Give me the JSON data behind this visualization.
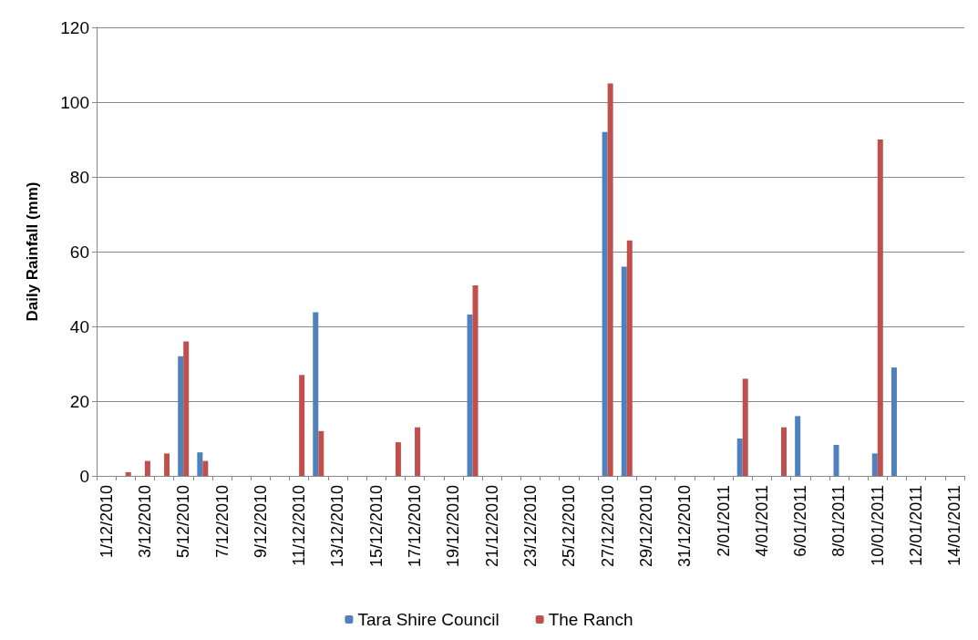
{
  "chart_data": {
    "type": "bar",
    "ylabel": "Daily Rainfall (mm)",
    "categories": [
      "1/12/2010",
      null,
      "3/12/2010",
      null,
      "5/12/2010",
      null,
      "7/12/2010",
      null,
      "9/12/2010",
      null,
      "11/12/2010",
      null,
      "13/12/2010",
      null,
      "15/12/2010",
      null,
      "17/12/2010",
      null,
      "19/12/2010",
      null,
      "21/12/2010",
      null,
      "23/12/2010",
      null,
      "25/12/2010",
      null,
      "27/12/2010",
      null,
      "29/12/2010",
      null,
      "31/12/2010",
      null,
      "2/01/2011",
      null,
      "4/01/2011",
      null,
      "6/01/2011",
      null,
      "8/01/2011",
      null,
      "10/01/2011",
      null,
      "12/01/2011",
      null,
      "14/01/2011"
    ],
    "series": [
      {
        "name": "Tara Shire Council",
        "color": "#4f81bd",
        "values": [
          0,
          0,
          0,
          0,
          32,
          6.3,
          0,
          0,
          0,
          0,
          0,
          43.8,
          0,
          0,
          0,
          0,
          0,
          0,
          0,
          43.2,
          0,
          0,
          0,
          0,
          0,
          0,
          92,
          56,
          0,
          0,
          0,
          0,
          0,
          10,
          0,
          0,
          16,
          0,
          8.3,
          0,
          6,
          29,
          0,
          0,
          0
        ]
      },
      {
        "name": "The Ranch",
        "color": "#c0504d",
        "values": [
          0,
          1,
          4,
          6,
          36,
          4,
          0,
          0,
          0,
          0,
          27,
          12,
          0,
          0,
          0,
          9,
          13,
          0,
          0,
          51,
          0,
          0,
          0,
          0,
          0,
          0,
          105,
          63,
          0,
          0,
          0,
          0,
          0,
          26,
          0,
          13,
          0,
          0,
          0,
          0,
          90,
          0,
          0,
          0,
          0
        ]
      }
    ],
    "ylim": [
      0,
      120
    ],
    "yticks": [
      0,
      20,
      40,
      60,
      80,
      100,
      120
    ],
    "grid": "y",
    "legend": "bottom"
  }
}
